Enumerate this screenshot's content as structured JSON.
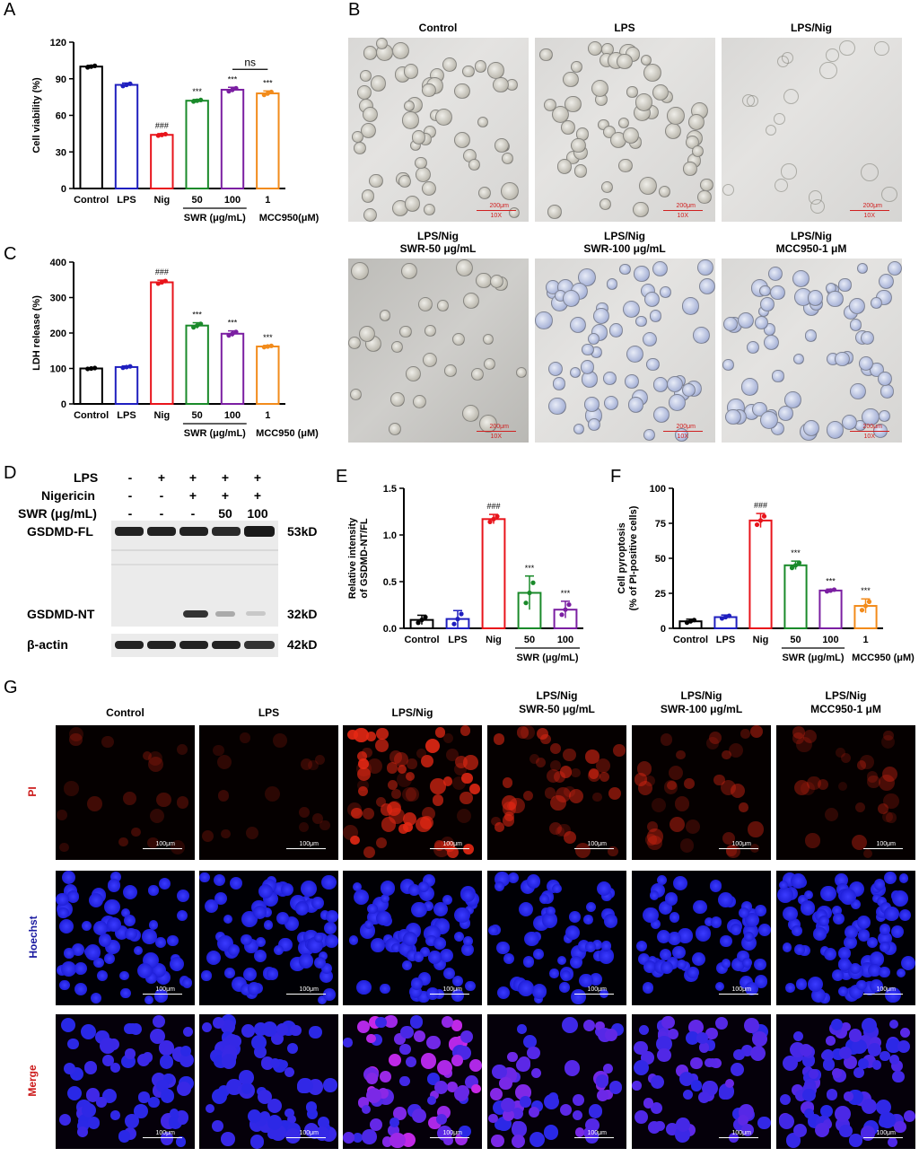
{
  "panels": {
    "A": "A",
    "B": "B",
    "C": "C",
    "D": "D",
    "E": "E",
    "F": "F",
    "G": "G"
  },
  "colors": {
    "control": "#000000",
    "lps": "#1f1fbf",
    "nig": "#e8141b",
    "swr50": "#1a8a2a",
    "swr100": "#7b1fa2",
    "mcc950": "#f28b1b"
  },
  "chart_data": [
    {
      "id": "A",
      "type": "bar",
      "categories": [
        "Control",
        "LPS",
        "Nig",
        "50",
        "100",
        "1"
      ],
      "values": [
        100,
        85,
        44,
        72,
        81,
        78
      ],
      "errors": [
        1,
        1.5,
        1,
        1,
        2,
        2
      ],
      "annotations": [
        "",
        "",
        "###",
        "***",
        "***",
        "***"
      ],
      "ylabel": "Cell viability (%)",
      "ylim": [
        0,
        120
      ],
      "yticks": [
        0,
        30,
        60,
        90,
        120
      ],
      "group_labels": [
        "SWR (μg/mL)",
        "MCC950(μM)"
      ],
      "comparison": "ns"
    },
    {
      "id": "C",
      "type": "bar",
      "categories": [
        "Control",
        "LPS",
        "Nig",
        "50",
        "100",
        "1"
      ],
      "values": [
        100,
        104,
        343,
        221,
        198,
        162
      ],
      "errors": [
        2,
        3,
        6,
        8,
        8,
        3
      ],
      "annotations": [
        "",
        "",
        "###",
        "***",
        "***",
        "***"
      ],
      "ylabel": "LDH release (%)",
      "ylim": [
        0,
        400
      ],
      "yticks": [
        0,
        100,
        200,
        300,
        400
      ],
      "group_labels": [
        "SWR (μg/mL)",
        "MCC950 (μM)"
      ]
    },
    {
      "id": "E",
      "type": "bar",
      "categories": [
        "Control",
        "LPS",
        "Nig",
        "50",
        "100"
      ],
      "values": [
        0.09,
        0.1,
        1.17,
        0.38,
        0.2
      ],
      "errors": [
        0.05,
        0.09,
        0.05,
        0.18,
        0.09
      ],
      "annotations": [
        "",
        "",
        "###",
        "***",
        "***"
      ],
      "ylabel": "Relative intensity of GSDMD-NT/FL",
      "ylim": [
        0,
        1.5
      ],
      "yticks": [
        0.0,
        0.5,
        1.0,
        1.5
      ],
      "ytick_labels": [
        "0.0",
        "0.5",
        "1.0",
        "1.5"
      ],
      "group_labels": [
        "SWR (μg/mL)"
      ]
    },
    {
      "id": "F",
      "type": "bar",
      "categories": [
        "Control",
        "LPS",
        "Nig",
        "50",
        "100",
        "1"
      ],
      "values": [
        5,
        8,
        77,
        45,
        27,
        16
      ],
      "errors": [
        1.5,
        1.5,
        5,
        3,
        1,
        5
      ],
      "annotations": [
        "",
        "",
        "###",
        "***",
        "***",
        "***"
      ],
      "ylabel": "Cell pyroptosis (% of PI-positive cells)",
      "ylim": [
        0,
        100
      ],
      "yticks": [
        0,
        25,
        50,
        75,
        100
      ],
      "group_labels": [
        "SWR (μg/mL)",
        "MCC950 (μM)"
      ]
    }
  ],
  "panelB": {
    "titles": [
      "Control",
      "LPS",
      "LPS/Nig",
      "LPS/Nig SWR-50 μg/mL",
      "LPS/Nig SWR-100 μg/mL",
      "LPS/Nig MCC950-1 μM"
    ],
    "title_line1": [
      "Control",
      "LPS",
      "LPS/Nig",
      "LPS/Nig",
      "LPS/Nig",
      "LPS/Nig"
    ],
    "title_line2": [
      "",
      "",
      "",
      "SWR-50 μg/mL",
      "SWR-100 μg/mL",
      "MCC950-1 μM"
    ],
    "scale_label": "200μm",
    "mag_label": "10X"
  },
  "panelD": {
    "row_labels": [
      "LPS",
      "Nigericin",
      "SWR (μg/mL)"
    ],
    "lps": [
      "-",
      "+",
      "+",
      "+",
      "+"
    ],
    "nigericin": [
      "-",
      "-",
      "+",
      "+",
      "+"
    ],
    "swr": [
      "-",
      "-",
      "-",
      "50",
      "100"
    ],
    "band_labels": [
      "GSDMD-FL",
      "GSDMD-NT",
      "β-actin"
    ],
    "mw_labels": [
      "53kD",
      "32kD",
      "42kD"
    ]
  },
  "panelG": {
    "col_line1": [
      "Control",
      "LPS",
      "LPS/Nig",
      "LPS/Nig",
      "LPS/Nig",
      "LPS/Nig"
    ],
    "col_line2": [
      "",
      "",
      "",
      "SWR-50 μg/mL",
      "SWR-100 μg/mL",
      "MCC950-1 μM"
    ],
    "rows": [
      "PI",
      "Hoechst",
      "Merge"
    ],
    "scale_label": "100μm"
  }
}
